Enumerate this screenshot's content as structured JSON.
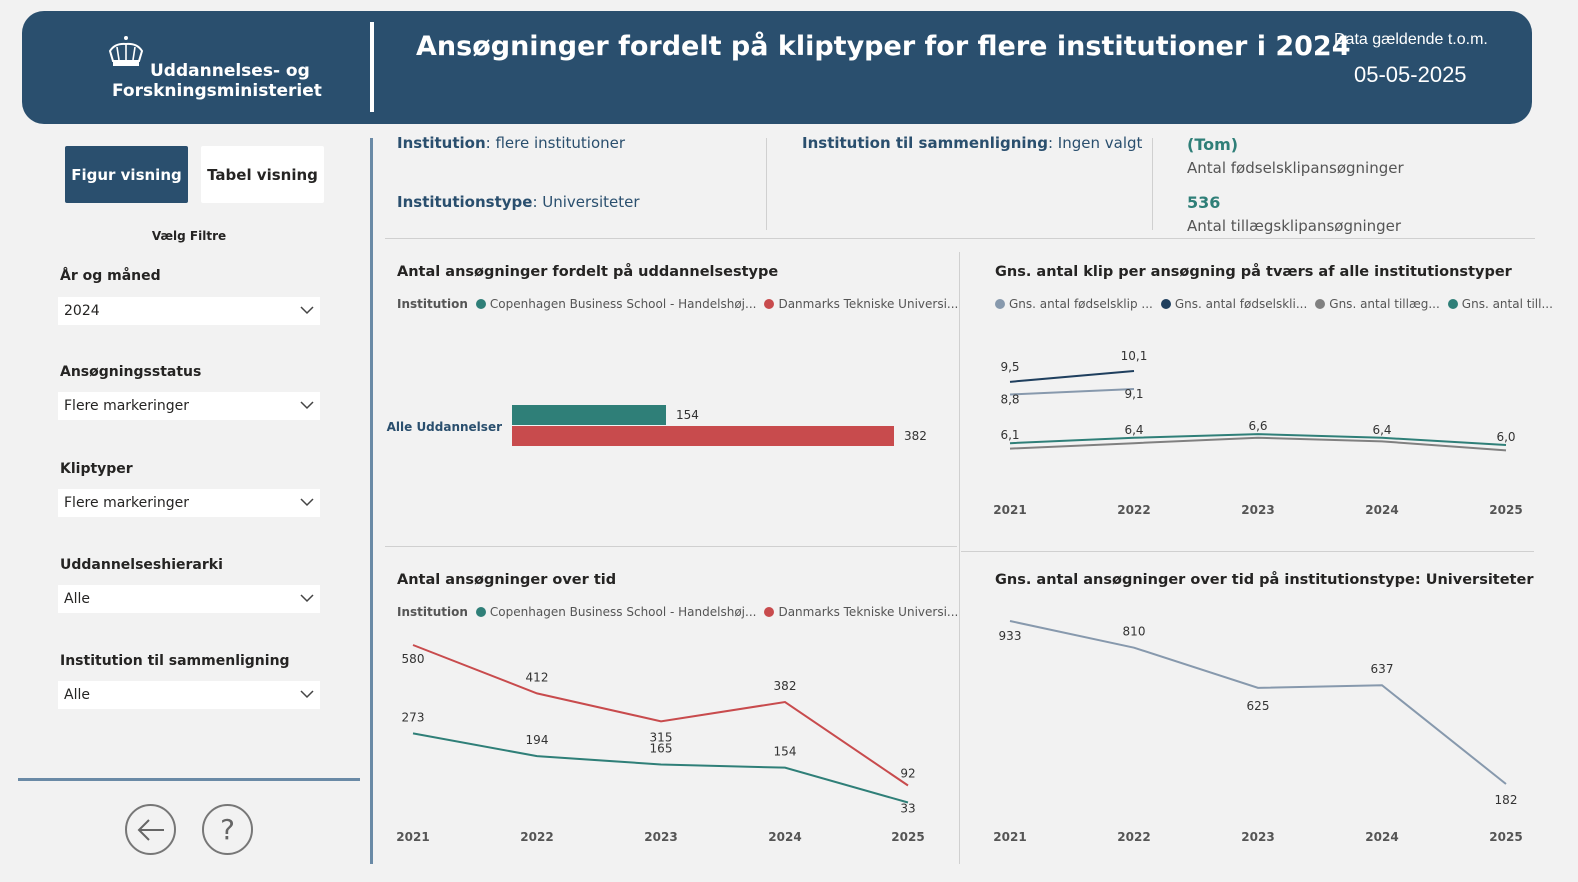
{
  "header": {
    "logo_line1": "Uddannelses- og",
    "logo_line2": "Forskningsministeriet",
    "title": "Ansøgninger fordelt på kliptyper for flere institutioner i 2024",
    "date_label": "Data gældende t.o.m.",
    "date_value": "05-05-2025"
  },
  "sidebar": {
    "view_figure": "Figur visning",
    "view_table": "Tabel visning",
    "filters_title": "Vælg Filtre",
    "filters": [
      {
        "label": "År og måned",
        "value": "2024"
      },
      {
        "label": "Ansøgningsstatus",
        "value": "Flere markeringer"
      },
      {
        "label": "Kliptyper",
        "value": "Flere markeringer"
      },
      {
        "label": "Uddannelseshierarki",
        "value": "Alle"
      },
      {
        "label": "Institution til sammenligning",
        "value": "Alle"
      }
    ],
    "back_icon": "arrow-left-icon",
    "help_icon": "question-icon"
  },
  "info": {
    "institution_label": "Institution",
    "institution_value": ": flere institutioner",
    "type_label": "Institutionstype",
    "type_value": ": Universiteter",
    "compare_label": "Institution til sammenligning",
    "compare_value": ": Ingen valgt",
    "kpi1_value": "(Tom)",
    "kpi1_label": "Antal fødselsklipansøgninger",
    "kpi2_value": "536",
    "kpi2_label": "Antal tillægsklipansøgninger"
  },
  "colors": {
    "teal": "#2f7f78",
    "red": "#c84b4d",
    "navy": "#1f3f5e",
    "gray": "#808080",
    "lightblue": "#8799ad"
  },
  "legend_institution": {
    "title": "Institution",
    "item1": "Copenhagen Business School - Handelshøj...",
    "item2": "Danmarks Tekniske Universi..."
  },
  "legend_avg": {
    "item1": "Gns. antal fødselsklip ...",
    "item2": "Gns. antal fødselskli...",
    "item3": "Gns. antal tillæg...",
    "item4": "Gns. antal till..."
  },
  "chart_data": [
    {
      "id": "edu_type",
      "type": "bar",
      "title": "Antal ansøgninger fordelt på uddannelsestype",
      "categories": [
        "Alle Uddannelser"
      ],
      "series": [
        {
          "name": "Copenhagen Business School - Handelshøj...",
          "values": [
            154
          ]
        },
        {
          "name": "Danmarks Tekniske Universi...",
          "values": [
            382
          ]
        }
      ],
      "xlim": [
        0,
        400
      ]
    },
    {
      "id": "avg_clip",
      "type": "line",
      "title": "Gns. antal klip per ansøgning på tværs af alle institutionstyper",
      "x": [
        "2021",
        "2022",
        "2023",
        "2024",
        "2025"
      ],
      "series": [
        {
          "name": "Gns. antal fødselsklip ...",
          "values": [
            8.8,
            9.1,
            null,
            null,
            null
          ],
          "labels": [
            "8,8",
            "9,1",
            "",
            "",
            ""
          ]
        },
        {
          "name": "Gns. antal fødselskli...",
          "values": [
            9.5,
            10.1,
            null,
            null,
            null
          ],
          "labels": [
            "9,5",
            "10,1",
            "",
            "",
            ""
          ]
        },
        {
          "name": "Gns. antal tillæg...",
          "values": [
            5.8,
            6.1,
            6.4,
            6.2,
            5.7
          ],
          "labels": [
            "",
            "",
            "",
            "",
            ""
          ]
        },
        {
          "name": "Gns. antal till...",
          "values": [
            6.1,
            6.4,
            6.6,
            6.4,
            6.0
          ],
          "labels": [
            "6,1",
            "6,4",
            "6,6",
            "6,4",
            "6,0"
          ]
        }
      ],
      "ylim": [
        5,
        11
      ]
    },
    {
      "id": "over_time",
      "type": "line",
      "title": "Antal ansøgninger over tid",
      "x": [
        "2021",
        "2022",
        "2023",
        "2024",
        "2025"
      ],
      "series": [
        {
          "name": "Copenhagen Business School - Handelshøj...",
          "values": [
            273,
            194,
            165,
            154,
            33
          ],
          "labels": [
            "273",
            "194",
            "165",
            "154",
            "33"
          ]
        },
        {
          "name": "Danmarks Tekniske Universi...",
          "values": [
            580,
            412,
            315,
            382,
            92
          ],
          "labels": [
            "580",
            "412",
            "315",
            "382",
            "92"
          ]
        }
      ],
      "ylim": [
        0,
        620
      ]
    },
    {
      "id": "inst_type",
      "type": "line",
      "title": "Gns. antal ansøgninger over tid på institutionstype: Universiteter",
      "x": [
        "2021",
        "2022",
        "2023",
        "2024",
        "2025"
      ],
      "series": [
        {
          "name": "Universiteter",
          "values": [
            933,
            810,
            625,
            637,
            182
          ],
          "labels": [
            "933",
            "810",
            "625",
            "637",
            "182"
          ]
        }
      ],
      "ylim": [
        150,
        950
      ]
    }
  ]
}
